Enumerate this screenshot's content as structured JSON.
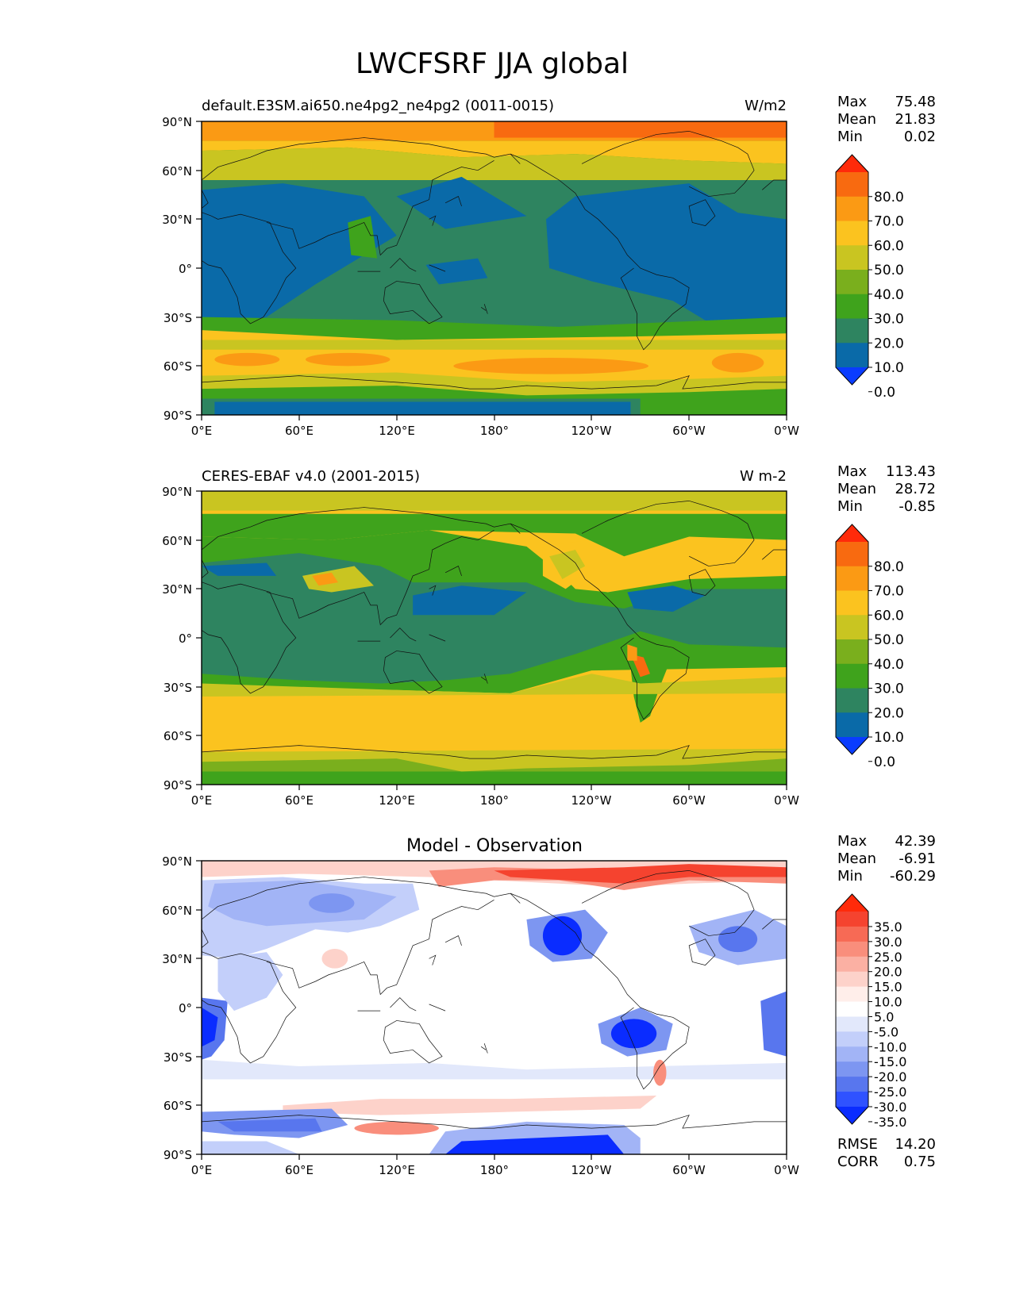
{
  "title": "LWCFSRF JJA global",
  "axes": {
    "lat_ticks": [
      "90°N",
      "60°N",
      "30°N",
      "0°",
      "30°S",
      "60°S",
      "90°S"
    ],
    "lon_ticks": [
      "0°E",
      "60°E",
      "120°E",
      "180°",
      "120°W",
      "60°W",
      "0°W"
    ]
  },
  "stat_labels": {
    "max": "Max",
    "mean": "Mean",
    "min": "Min",
    "rmse": "RMSE",
    "corr": "CORR"
  },
  "panels": [
    {
      "id": "test",
      "left_title": "default.E3SM.ai650.ne4pg2_ne4pg2 (0011-0015)",
      "center_title": "",
      "units": "W/m2",
      "stats": {
        "max": "75.48",
        "mean": "21.83",
        "min": "0.02"
      },
      "colorbar": {
        "labels": [
          "80.0",
          "70.0",
          "60.0",
          "50.0",
          "40.0",
          "30.0",
          "20.0",
          "10.0",
          "0.0"
        ],
        "colors": [
          "#ff2a0a",
          "#f86a10",
          "#fb9a14",
          "#fbc31f",
          "#c9c521",
          "#7aaf1d",
          "#3fa31c",
          "#2e8460",
          "#0a6aa8",
          "#0a3cff"
        ]
      }
    },
    {
      "id": "ref",
      "left_title": "CERES-EBAF v4.0 (2001-2015)",
      "center_title": "",
      "units": "W m-2",
      "stats": {
        "max": "113.43",
        "mean": "28.72",
        "min": "-0.85"
      },
      "colorbar": {
        "labels": [
          "80.0",
          "70.0",
          "60.0",
          "50.0",
          "40.0",
          "30.0",
          "20.0",
          "10.0",
          "0.0"
        ],
        "colors": [
          "#ff2a0a",
          "#f86a10",
          "#fb9a14",
          "#fbc31f",
          "#c9c521",
          "#7aaf1d",
          "#3fa31c",
          "#2e8460",
          "#0a6aa8",
          "#0a3cff"
        ]
      }
    },
    {
      "id": "diff",
      "left_title": "",
      "center_title": "Model - Observation",
      "units": "",
      "stats": {
        "max": "42.39",
        "mean": "-6.91",
        "min": "-60.29",
        "rmse": "14.20",
        "corr": "0.75"
      },
      "colorbar": {
        "labels": [
          "35.0",
          "30.0",
          "25.0",
          "20.0",
          "15.0",
          "10.0",
          "5.0",
          "-5.0",
          "-10.0",
          "-15.0",
          "-20.0",
          "-25.0",
          "-30.0",
          "-35.0"
        ],
        "colors": [
          "#ff2a0a",
          "#f5432f",
          "#f76a55",
          "#f98e7c",
          "#fbb0a3",
          "#fdd2ca",
          "#ffeeea",
          "#ffffff",
          "#e2e8fb",
          "#c3cffa",
          "#a2b4f6",
          "#7d96f1",
          "#5876ee",
          "#2f52ff",
          "#0a2cff"
        ]
      }
    }
  ]
}
